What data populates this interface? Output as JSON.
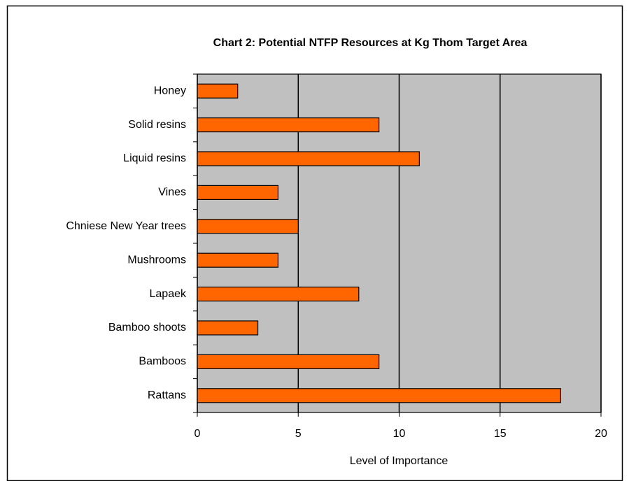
{
  "chart_data": {
    "type": "bar",
    "orientation": "horizontal",
    "title": "Chart 2: Potential NTFP Resources at Kg Thom Target Area",
    "x_label": "Level of Importance",
    "categories": [
      "Honey",
      "Solid resins",
      "Liquid resins",
      "Vines",
      "Chniese New Year trees",
      "Mushrooms",
      "Lapaek",
      "Bamboo shoots",
      "Bamboos",
      "Rattans"
    ],
    "values": [
      2,
      9,
      11,
      4,
      5,
      4,
      8,
      3,
      9,
      18
    ],
    "color": "#ff6600",
    "xlim": [
      0,
      20
    ],
    "xticks": [
      0,
      5,
      10,
      15,
      20
    ],
    "grid": true
  }
}
